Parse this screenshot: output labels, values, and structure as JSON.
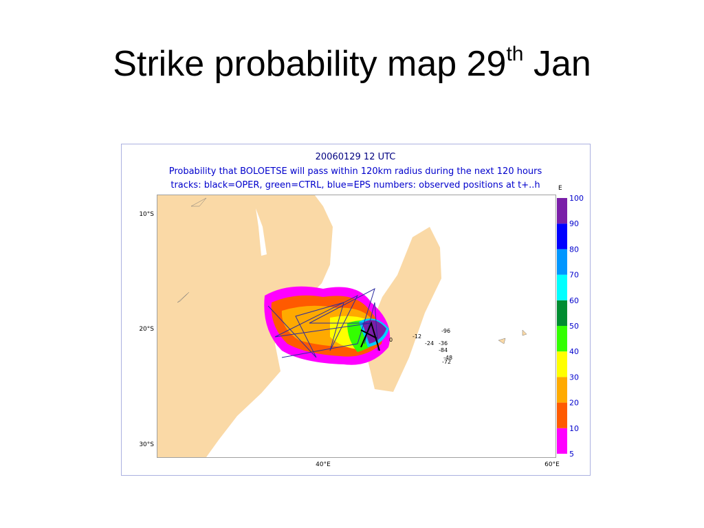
{
  "title": {
    "text": "Strike probability map 29",
    "superscript": "th",
    "suffix": "Jan"
  },
  "map": {
    "header": [
      "20060129 12 UTC",
      "Probability that BOLOETSE will pass within 120km radius during the next 120 hours",
      "tracks: black=OPER, green=CTRL, blue=EPS numbers: observed positions at t+..h"
    ],
    "lat_labels": [
      "10°S",
      "20°S",
      "30°S"
    ],
    "lon_labels": [
      "40°E",
      "60°E"
    ],
    "legend": {
      "unit": "E",
      "levels": [
        5,
        10,
        20,
        30,
        40,
        50,
        60,
        70,
        80,
        90,
        100
      ],
      "colors": [
        "#ff00ff",
        "#ff5a00",
        "#ffaa00",
        "#ffff00",
        "#33ff00",
        "#008c30",
        "#00ffff",
        "#0096ff",
        "#0000ff",
        "#7a1fa8"
      ]
    },
    "track_labels": [
      "-96",
      "-12",
      "-24",
      "-36",
      "-84",
      "-48",
      "-72",
      "0"
    ]
  }
}
